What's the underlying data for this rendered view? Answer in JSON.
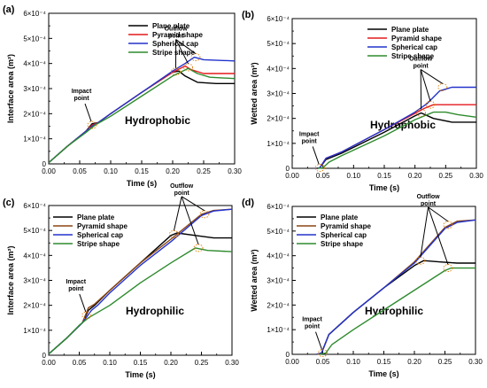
{
  "chart_data": [
    {
      "type": "line",
      "panel_label": "(a)",
      "condition": "Hydrophobic",
      "xlabel": "Time (s)",
      "ylabel": "Interface area (m²)",
      "xlim": [
        0,
        0.3
      ],
      "ylim": [
        0,
        0.0006
      ],
      "x_ticks": [
        "0.00",
        "0.05",
        "0.10",
        "0.15",
        "0.20",
        "0.25",
        "0.30"
      ],
      "y_ticks": [
        "0",
        "1×10⁻⁴",
        "2×10⁻⁴",
        "3×10⁻⁴",
        "4×10⁻⁴",
        "5×10⁻⁴",
        "6×10⁻⁴"
      ],
      "legend_position": "top-right",
      "series": [
        {
          "name": "Plane plate",
          "color": "#000000",
          "points": [
            [
              0,
              5e-06
            ],
            [
              0.03,
              7e-05
            ],
            [
              0.06,
              0.00013
            ],
            [
              0.07,
              0.00016
            ],
            [
              0.08,
              0.000165
            ],
            [
              0.1,
              0.0002
            ],
            [
              0.15,
              0.000285
            ],
            [
              0.2,
              0.000365
            ],
            [
              0.21,
              0.00037
            ],
            [
              0.22,
              0.00035
            ],
            [
              0.24,
              0.000325
            ],
            [
              0.27,
              0.00032
            ],
            [
              0.3,
              0.00032
            ]
          ]
        },
        {
          "name": "Pyramid shape",
          "color": "#e41a1c",
          "points": [
            [
              0,
              5e-06
            ],
            [
              0.03,
              7e-05
            ],
            [
              0.06,
              0.00013
            ],
            [
              0.07,
              0.000155
            ],
            [
              0.08,
              0.000165
            ],
            [
              0.1,
              0.0002
            ],
            [
              0.15,
              0.000285
            ],
            [
              0.2,
              0.000365
            ],
            [
              0.22,
              0.00039
            ],
            [
              0.23,
              0.000375
            ],
            [
              0.25,
              0.00036
            ],
            [
              0.3,
              0.00036
            ]
          ]
        },
        {
          "name": "Spherical cap",
          "color": "#2233cc",
          "points": [
            [
              0,
              5e-06
            ],
            [
              0.03,
              7e-05
            ],
            [
              0.06,
              0.00013
            ],
            [
              0.07,
              0.00015
            ],
            [
              0.08,
              0.000165
            ],
            [
              0.1,
              0.0002
            ],
            [
              0.15,
              0.000285
            ],
            [
              0.2,
              0.00037
            ],
            [
              0.22,
              0.0004
            ],
            [
              0.235,
              0.000425
            ],
            [
              0.25,
              0.000415
            ],
            [
              0.3,
              0.00041
            ]
          ]
        },
        {
          "name": "Stripe shape",
          "color": "#2e8b2e",
          "points": [
            [
              0,
              5e-06
            ],
            [
              0.03,
              7e-05
            ],
            [
              0.06,
              0.000125
            ],
            [
              0.075,
              0.000155
            ],
            [
              0.1,
              0.00019
            ],
            [
              0.15,
              0.00027
            ],
            [
              0.2,
              0.00035
            ],
            [
              0.225,
              0.00038
            ],
            [
              0.24,
              0.00036
            ],
            [
              0.26,
              0.000345
            ],
            [
              0.3,
              0.00034
            ]
          ]
        }
      ],
      "annotations": [
        {
          "text": "Impact point",
          "x": 0.07,
          "y": 0.000155
        },
        {
          "text": "Outflow point",
          "points": [
            [
              0.205,
              0.000368
            ],
            [
              0.225,
              0.000385
            ],
            [
              0.237,
              0.000425
            ]
          ]
        }
      ]
    },
    {
      "type": "line",
      "panel_label": "(b)",
      "condition": "Hydrophobic",
      "xlabel": "Time (s)",
      "ylabel": "Wetted area (m²)",
      "xlim": [
        0,
        0.3
      ],
      "ylim": [
        0,
        0.0006
      ],
      "x_ticks": [
        "0.00",
        "0.05",
        "0.10",
        "0.15",
        "0.20",
        "0.25",
        "0.30"
      ],
      "y_ticks": [
        "0",
        "1×10⁻⁴",
        "2×10⁻⁴",
        "3×10⁻⁴",
        "4×10⁻⁴",
        "5×10⁻⁴",
        "6×10⁻⁴"
      ],
      "legend_position": "top-right",
      "series": [
        {
          "name": "Plane plate",
          "color": "#000000",
          "points": [
            [
              0.04,
              0
            ],
            [
              0.045,
              2e-06
            ],
            [
              0.055,
              3.5e-05
            ],
            [
              0.08,
              6e-05
            ],
            [
              0.15,
              0.000145
            ],
            [
              0.2,
              0.00021
            ],
            [
              0.21,
              0.000222
            ],
            [
              0.23,
              0.0002
            ],
            [
              0.26,
              0.000185
            ],
            [
              0.3,
              0.000185
            ]
          ]
        },
        {
          "name": "Pyramid shape",
          "color": "#e41a1c",
          "points": [
            [
              0.04,
              0
            ],
            [
              0.045,
              2e-06
            ],
            [
              0.055,
              4e-05
            ],
            [
              0.08,
              6.5e-05
            ],
            [
              0.15,
              0.000155
            ],
            [
              0.2,
              0.00022
            ],
            [
              0.215,
              0.00024
            ],
            [
              0.23,
              0.000255
            ],
            [
              0.25,
              0.000255
            ],
            [
              0.3,
              0.000255
            ]
          ]
        },
        {
          "name": "Spherical cap",
          "color": "#2233cc",
          "points": [
            [
              0.04,
              0
            ],
            [
              0.045,
              2e-06
            ],
            [
              0.055,
              4e-05
            ],
            [
              0.08,
              6.5e-05
            ],
            [
              0.15,
              0.000155
            ],
            [
              0.2,
              0.000225
            ],
            [
              0.22,
              0.00026
            ],
            [
              0.24,
              0.00031
            ],
            [
              0.26,
              0.000325
            ],
            [
              0.3,
              0.000325
            ]
          ]
        },
        {
          "name": "Stripe shape",
          "color": "#2e8b2e",
          "points": [
            [
              0.042,
              0
            ],
            [
              0.05,
              2e-06
            ],
            [
              0.06,
              2.5e-05
            ],
            [
              0.08,
              5e-05
            ],
            [
              0.15,
              0.00013
            ],
            [
              0.2,
              0.000195
            ],
            [
              0.23,
              0.000225
            ],
            [
              0.25,
              0.000225
            ],
            [
              0.27,
              0.000215
            ],
            [
              0.3,
              0.000205
            ]
          ]
        }
      ],
      "annotations": [
        {
          "text": "Impact point",
          "x": 0.045,
          "y": 2e-06
        },
        {
          "text": "Outflow point",
          "points": [
            [
              0.21,
              0.000222
            ],
            [
              0.225,
              0.000255
            ],
            [
              0.245,
              0.000325
            ]
          ]
        }
      ]
    },
    {
      "type": "line",
      "panel_label": "(c)",
      "condition": "Hydrophilic",
      "xlabel": "Time (s)",
      "ylabel": "Interface area (m²)",
      "xlim": [
        0,
        0.3
      ],
      "ylim": [
        0,
        0.0006
      ],
      "x_ticks": [
        "0.00",
        "0.05",
        "0.10",
        "0.15",
        "0.20",
        "0.25",
        "0.30"
      ],
      "y_ticks": [
        "0",
        "1×10⁻⁴",
        "2×10⁻⁴",
        "3×10⁻⁴",
        "4×10⁻⁴",
        "5×10⁻⁴",
        "6×10⁻⁴"
      ],
      "legend_position": "top-left",
      "series": [
        {
          "name": "Plane plate",
          "color": "#000000",
          "points": [
            [
              0,
              5e-06
            ],
            [
              0.03,
              7e-05
            ],
            [
              0.055,
              0.00013
            ],
            [
              0.065,
              0.00018
            ],
            [
              0.075,
              0.0002
            ],
            [
              0.1,
              0.00026
            ],
            [
              0.15,
              0.00037
            ],
            [
              0.2,
              0.00048
            ],
            [
              0.21,
              0.00049
            ],
            [
              0.24,
              0.00048
            ],
            [
              0.27,
              0.00047
            ],
            [
              0.3,
              0.00047
            ]
          ]
        },
        {
          "name": "Pyramid shape",
          "color": "#8b4513",
          "points": [
            [
              0,
              5e-06
            ],
            [
              0.03,
              7e-05
            ],
            [
              0.055,
              0.00013
            ],
            [
              0.065,
              0.00019
            ],
            [
              0.075,
              0.000205
            ],
            [
              0.1,
              0.00026
            ],
            [
              0.15,
              0.00037
            ],
            [
              0.2,
              0.000465
            ],
            [
              0.25,
              0.000565
            ],
            [
              0.27,
              0.00058
            ],
            [
              0.3,
              0.000585
            ]
          ]
        },
        {
          "name": "Spherical cap",
          "color": "#2233cc",
          "points": [
            [
              0,
              5e-06
            ],
            [
              0.03,
              7e-05
            ],
            [
              0.055,
              0.00013
            ],
            [
              0.07,
              0.00018
            ],
            [
              0.08,
              0.0002
            ],
            [
              0.1,
              0.00025
            ],
            [
              0.15,
              0.00036
            ],
            [
              0.2,
              0.000455
            ],
            [
              0.25,
              0.00056
            ],
            [
              0.27,
              0.000578
            ],
            [
              0.3,
              0.000585
            ]
          ]
        },
        {
          "name": "Stripe shape",
          "color": "#2e8b2e",
          "points": [
            [
              0,
              5e-06
            ],
            [
              0.03,
              7e-05
            ],
            [
              0.05,
              0.00012
            ],
            [
              0.065,
              0.00015
            ],
            [
              0.1,
              0.0002
            ],
            [
              0.15,
              0.00029
            ],
            [
              0.2,
              0.00037
            ],
            [
              0.24,
              0.00043
            ],
            [
              0.26,
              0.00042
            ],
            [
              0.3,
              0.000415
            ]
          ]
        }
      ],
      "annotations": [
        {
          "text": "Impact point",
          "x": 0.062,
          "y": 0.00016
        },
        {
          "text": "Outflow point",
          "points": [
            [
              0.205,
              0.000485
            ],
            [
              0.245,
              0.00043
            ],
            [
              0.255,
              0.000565
            ]
          ]
        }
      ]
    },
    {
      "type": "line",
      "panel_label": "(d)",
      "condition": "Hydrophilic",
      "xlabel": "Time (s)",
      "ylabel": "Wetted area (m²)",
      "xlim": [
        0,
        0.3
      ],
      "ylim": [
        0,
        0.0006
      ],
      "x_ticks": [
        "0.00",
        "0.05",
        "0.10",
        "0.15",
        "0.20",
        "0.25",
        "0.30"
      ],
      "y_ticks": [
        "0",
        "1×10⁻⁴",
        "2×10⁻⁴",
        "3×10⁻⁴",
        "4×10⁻⁴",
        "5×10⁻⁴",
        "6×10⁻⁴"
      ],
      "legend_position": "top-left",
      "series": [
        {
          "name": "Plane plate",
          "color": "#000000",
          "points": [
            [
              0.04,
              0
            ],
            [
              0.048,
              5e-06
            ],
            [
              0.06,
              8e-05
            ],
            [
              0.1,
              0.00017
            ],
            [
              0.15,
              0.00027
            ],
            [
              0.2,
              0.00036
            ],
            [
              0.215,
              0.00038
            ],
            [
              0.24,
              0.000375
            ],
            [
              0.27,
              0.00037
            ],
            [
              0.3,
              0.00037
            ]
          ]
        },
        {
          "name": "Pyramid shape",
          "color": "#8b4513",
          "points": [
            [
              0.04,
              0
            ],
            [
              0.048,
              5e-06
            ],
            [
              0.06,
              8e-05
            ],
            [
              0.1,
              0.00017
            ],
            [
              0.15,
              0.00027
            ],
            [
              0.2,
              0.000375
            ],
            [
              0.25,
              0.000515
            ],
            [
              0.27,
              0.00054
            ],
            [
              0.3,
              0.000545
            ]
          ]
        },
        {
          "name": "Spherical cap",
          "color": "#2233cc",
          "points": [
            [
              0.04,
              0
            ],
            [
              0.048,
              5e-06
            ],
            [
              0.06,
              8e-05
            ],
            [
              0.1,
              0.00017
            ],
            [
              0.15,
              0.00027
            ],
            [
              0.2,
              0.00037
            ],
            [
              0.25,
              0.00051
            ],
            [
              0.27,
              0.000535
            ],
            [
              0.3,
              0.000545
            ]
          ]
        },
        {
          "name": "Stripe shape",
          "color": "#2e8b2e",
          "points": [
            [
              0.045,
              0
            ],
            [
              0.055,
              5e-06
            ],
            [
              0.065,
              4e-05
            ],
            [
              0.1,
              0.0001
            ],
            [
              0.15,
              0.00018
            ],
            [
              0.2,
              0.00026
            ],
            [
              0.25,
              0.00034
            ],
            [
              0.26,
              0.00035
            ],
            [
              0.3,
              0.00035
            ]
          ]
        }
      ],
      "annotations": [
        {
          "text": "Impact point",
          "x": 0.05,
          "y": 5e-06
        },
        {
          "text": "Outflow point",
          "points": [
            [
              0.21,
              0.00038
            ],
            [
              0.255,
              0.00035
            ],
            [
              0.255,
              0.000525
            ]
          ]
        }
      ]
    }
  ]
}
